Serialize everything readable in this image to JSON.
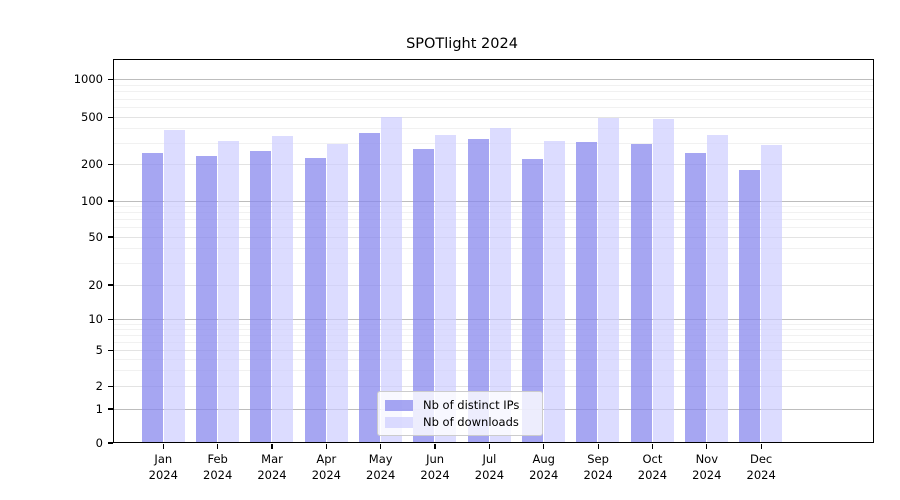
{
  "title": "SPOTlight 2024",
  "chart_data": {
    "type": "bar",
    "title": "SPOTlight 2024",
    "xlabel": "",
    "ylabel": "",
    "y_scale": "symlog-like",
    "y_ticks": [
      0,
      1,
      2,
      5,
      10,
      20,
      50,
      100,
      200,
      500,
      1000
    ],
    "grid": "horizontal major + log minor",
    "legend_position": "lower center",
    "categories": [
      {
        "month": "Jan",
        "year": "2024"
      },
      {
        "month": "Feb",
        "year": "2024"
      },
      {
        "month": "Mar",
        "year": "2024"
      },
      {
        "month": "Apr",
        "year": "2024"
      },
      {
        "month": "May",
        "year": "2024"
      },
      {
        "month": "Jun",
        "year": "2024"
      },
      {
        "month": "Jul",
        "year": "2024"
      },
      {
        "month": "Aug",
        "year": "2024"
      },
      {
        "month": "Sep",
        "year": "2024"
      },
      {
        "month": "Oct",
        "year": "2024"
      },
      {
        "month": "Nov",
        "year": "2024"
      },
      {
        "month": "Dec",
        "year": "2024"
      }
    ],
    "series": [
      {
        "name": "Nb of distinct IPs",
        "color": "rgba(136,136,238,0.75)",
        "values": [
          250,
          236,
          261,
          225,
          365,
          268,
          324,
          223,
          310,
          298,
          248,
          179
        ]
      },
      {
        "name": "Nb of downloads",
        "color": "rgba(204,204,255,0.68)",
        "values": [
          390,
          313,
          349,
          294,
          500,
          355,
          405,
          315,
          490,
          485,
          350,
          290
        ]
      }
    ]
  }
}
